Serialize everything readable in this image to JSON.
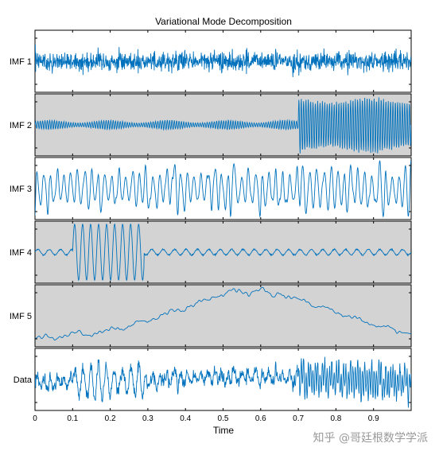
{
  "chart_data": {
    "type": "line",
    "title": "Variational Mode Decomposition",
    "xlabel": "Time",
    "xlim": [
      0,
      1
    ],
    "x_ticks": [
      "0",
      "0.1",
      "0.2",
      "0.3",
      "0.4",
      "0.5",
      "0.6",
      "0.7",
      "0.8",
      "0.9"
    ],
    "line_color": "#0072BD",
    "panels": [
      {
        "name": "IMF 1",
        "background": "#ffffff",
        "description": "high-frequency noise, roughly constant amplitude across the whole interval"
      },
      {
        "name": "IMF 2",
        "background": "#d3d3d3",
        "description": "low-amplitude oscillation for t < 0.70, large-amplitude high-frequency oscillation for t >= 0.70"
      },
      {
        "name": "IMF 3",
        "background": "#ffffff",
        "description": "mid-frequency oscillation with varying amplitude envelope"
      },
      {
        "name": "IMF 4",
        "background": "#d3d3d3",
        "description": "large sinusoid of about 9 cycles between t = 0.10 and t = 0.29, small ripple elsewhere"
      },
      {
        "name": "IMF 5",
        "background": "#d3d3d3",
        "description": "slow trend: rises from t = 0 to a peak near t = 0.6, then falls back"
      },
      {
        "name": "Data",
        "background": "#ffffff",
        "description": "original signal, sum of all modes"
      }
    ],
    "grid": false,
    "legend": "none"
  },
  "watermark": "知乎 @哥廷根数学学派"
}
